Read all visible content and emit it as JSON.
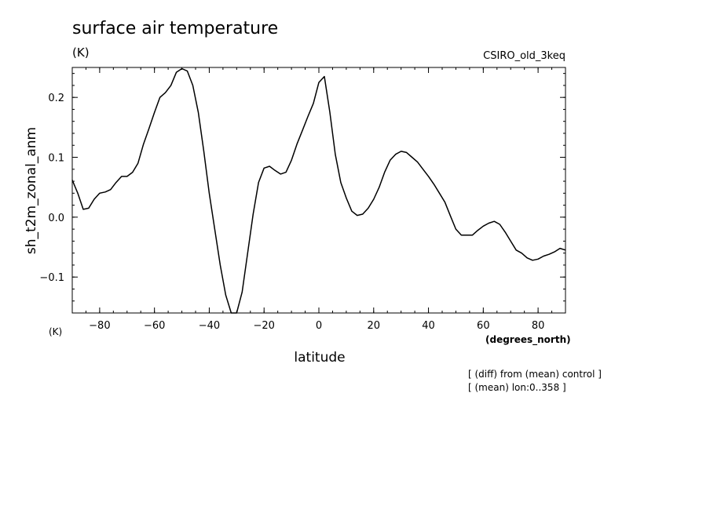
{
  "header": {
    "title": "surface air temperature",
    "units": "(K)",
    "model": "CSIRO_old_3keq"
  },
  "footer": {
    "note1": "[ (diff) from (mean) control ]",
    "note2": "[ (mean) lon:0..358 ]"
  },
  "chart_data": {
    "type": "line",
    "title": "surface air temperature",
    "xlabel": "latitude",
    "ylabel": "sh_t2m_zonal_anm",
    "xunits": "(degrees_north)",
    "yunits": "(K)",
    "xlim": [
      -90,
      90
    ],
    "ylim": [
      -0.16,
      0.25
    ],
    "xticks": [
      -80,
      -60,
      -40,
      -20,
      0,
      20,
      40,
      60,
      80
    ],
    "xtick_labels": [
      "−80",
      "−60",
      "−40",
      "−20",
      "0",
      "20",
      "40",
      "60",
      "80"
    ],
    "yticks": [
      -0.1,
      0.0,
      0.1,
      0.2
    ],
    "ytick_labels": [
      "−0.1",
      "0.0",
      "0.1",
      "0.2"
    ],
    "grid": false,
    "series": [
      {
        "color": "#000000",
        "x": [
          -90,
          -88,
          -86,
          -84,
          -82,
          -80,
          -78,
          -76,
          -74,
          -72,
          -70,
          -68,
          -66,
          -64,
          -62,
          -60,
          -58,
          -56,
          -54,
          -52,
          -50,
          -48,
          -46,
          -44,
          -42,
          -40,
          -38,
          -36,
          -34,
          -32,
          -30,
          -28,
          -26,
          -24,
          -22,
          -20,
          -18,
          -16,
          -14,
          -12,
          -10,
          -8,
          -6,
          -4,
          -2,
          0,
          2,
          4,
          6,
          8,
          10,
          12,
          14,
          16,
          18,
          20,
          22,
          24,
          26,
          28,
          30,
          32,
          34,
          36,
          38,
          40,
          42,
          44,
          46,
          48,
          50,
          52,
          54,
          56,
          58,
          60,
          62,
          64,
          66,
          68,
          70,
          72,
          74,
          76,
          78,
          80,
          82,
          84,
          86,
          88,
          90
        ],
        "y": [
          0.062,
          0.04,
          0.013,
          0.015,
          0.03,
          0.04,
          0.042,
          0.046,
          0.058,
          0.068,
          0.068,
          0.075,
          0.09,
          0.122,
          0.148,
          0.175,
          0.2,
          0.208,
          0.22,
          0.242,
          0.248,
          0.244,
          0.22,
          0.175,
          0.11,
          0.04,
          -0.02,
          -0.08,
          -0.13,
          -0.16,
          -0.16,
          -0.125,
          -0.06,
          0.005,
          0.058,
          0.082,
          0.085,
          0.078,
          0.072,
          0.075,
          0.095,
          0.122,
          0.145,
          0.168,
          0.19,
          0.225,
          0.235,
          0.175,
          0.105,
          0.058,
          0.032,
          0.01,
          0.003,
          0.005,
          0.015,
          0.03,
          0.05,
          0.075,
          0.095,
          0.105,
          0.11,
          0.108,
          0.1,
          0.092,
          0.08,
          0.068,
          0.055,
          0.04,
          0.025,
          0.002,
          -0.02,
          -0.03,
          -0.03,
          -0.03,
          -0.022,
          -0.015,
          -0.01,
          -0.007,
          -0.012,
          -0.025,
          -0.04,
          -0.055,
          -0.06,
          -0.068,
          -0.072,
          -0.07,
          -0.065,
          -0.062,
          -0.058,
          -0.052,
          -0.055
        ]
      }
    ]
  }
}
